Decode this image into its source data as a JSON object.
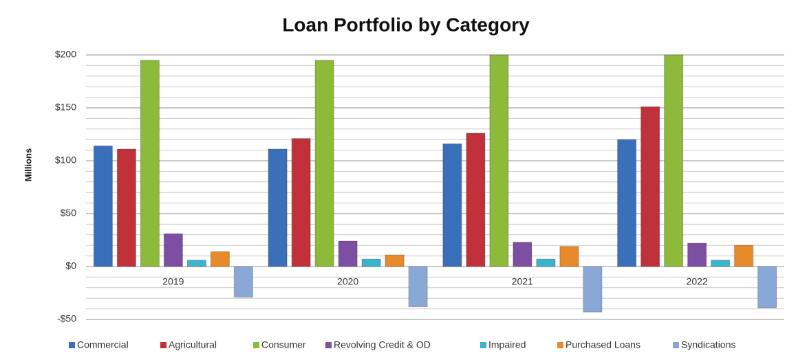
{
  "chart_data": {
    "type": "bar",
    "title": "Loan Portfolio by Category",
    "y_label": "Millions",
    "categories": [
      "2019",
      "2020",
      "2021",
      "2022"
    ],
    "series": [
      {
        "name": "Commercial",
        "color": "#3a6fba",
        "values": [
          114,
          111,
          116,
          120
        ]
      },
      {
        "name": "Agricultural",
        "color": "#c0313a",
        "values": [
          111,
          121,
          126,
          151
        ]
      },
      {
        "name": "Consumer",
        "color": "#8dba3a",
        "values": [
          195,
          195,
          200,
          200
        ]
      },
      {
        "name": "Revolving Credit & OD",
        "color": "#7d4fa3",
        "values": [
          31,
          24,
          23,
          22
        ]
      },
      {
        "name": "Impaired",
        "color": "#3ab3cf",
        "values": [
          6,
          7,
          7,
          6
        ]
      },
      {
        "name": "Purchased Loans",
        "color": "#e8892a",
        "values": [
          14,
          11,
          19,
          20
        ]
      },
      {
        "name": "Syndications",
        "color": "#8aa8d6",
        "values": [
          -29,
          -38,
          -43,
          -39
        ]
      }
    ],
    "ylim": [
      -50,
      200
    ],
    "yticks": [
      {
        "value": -50,
        "label": "-$50"
      },
      {
        "value": 0,
        "label": "$0"
      },
      {
        "value": 50,
        "label": "$50"
      },
      {
        "value": 100,
        "label": "$100"
      },
      {
        "value": 150,
        "label": "$150"
      },
      {
        "value": 200,
        "label": "$200"
      }
    ],
    "yminorticks": [
      -40,
      -30,
      -20,
      -10,
      10,
      20,
      30,
      40,
      60,
      70,
      80,
      90,
      110,
      120,
      130,
      140,
      160,
      170,
      180,
      190
    ],
    "grid": true,
    "legend": "bottom"
  }
}
